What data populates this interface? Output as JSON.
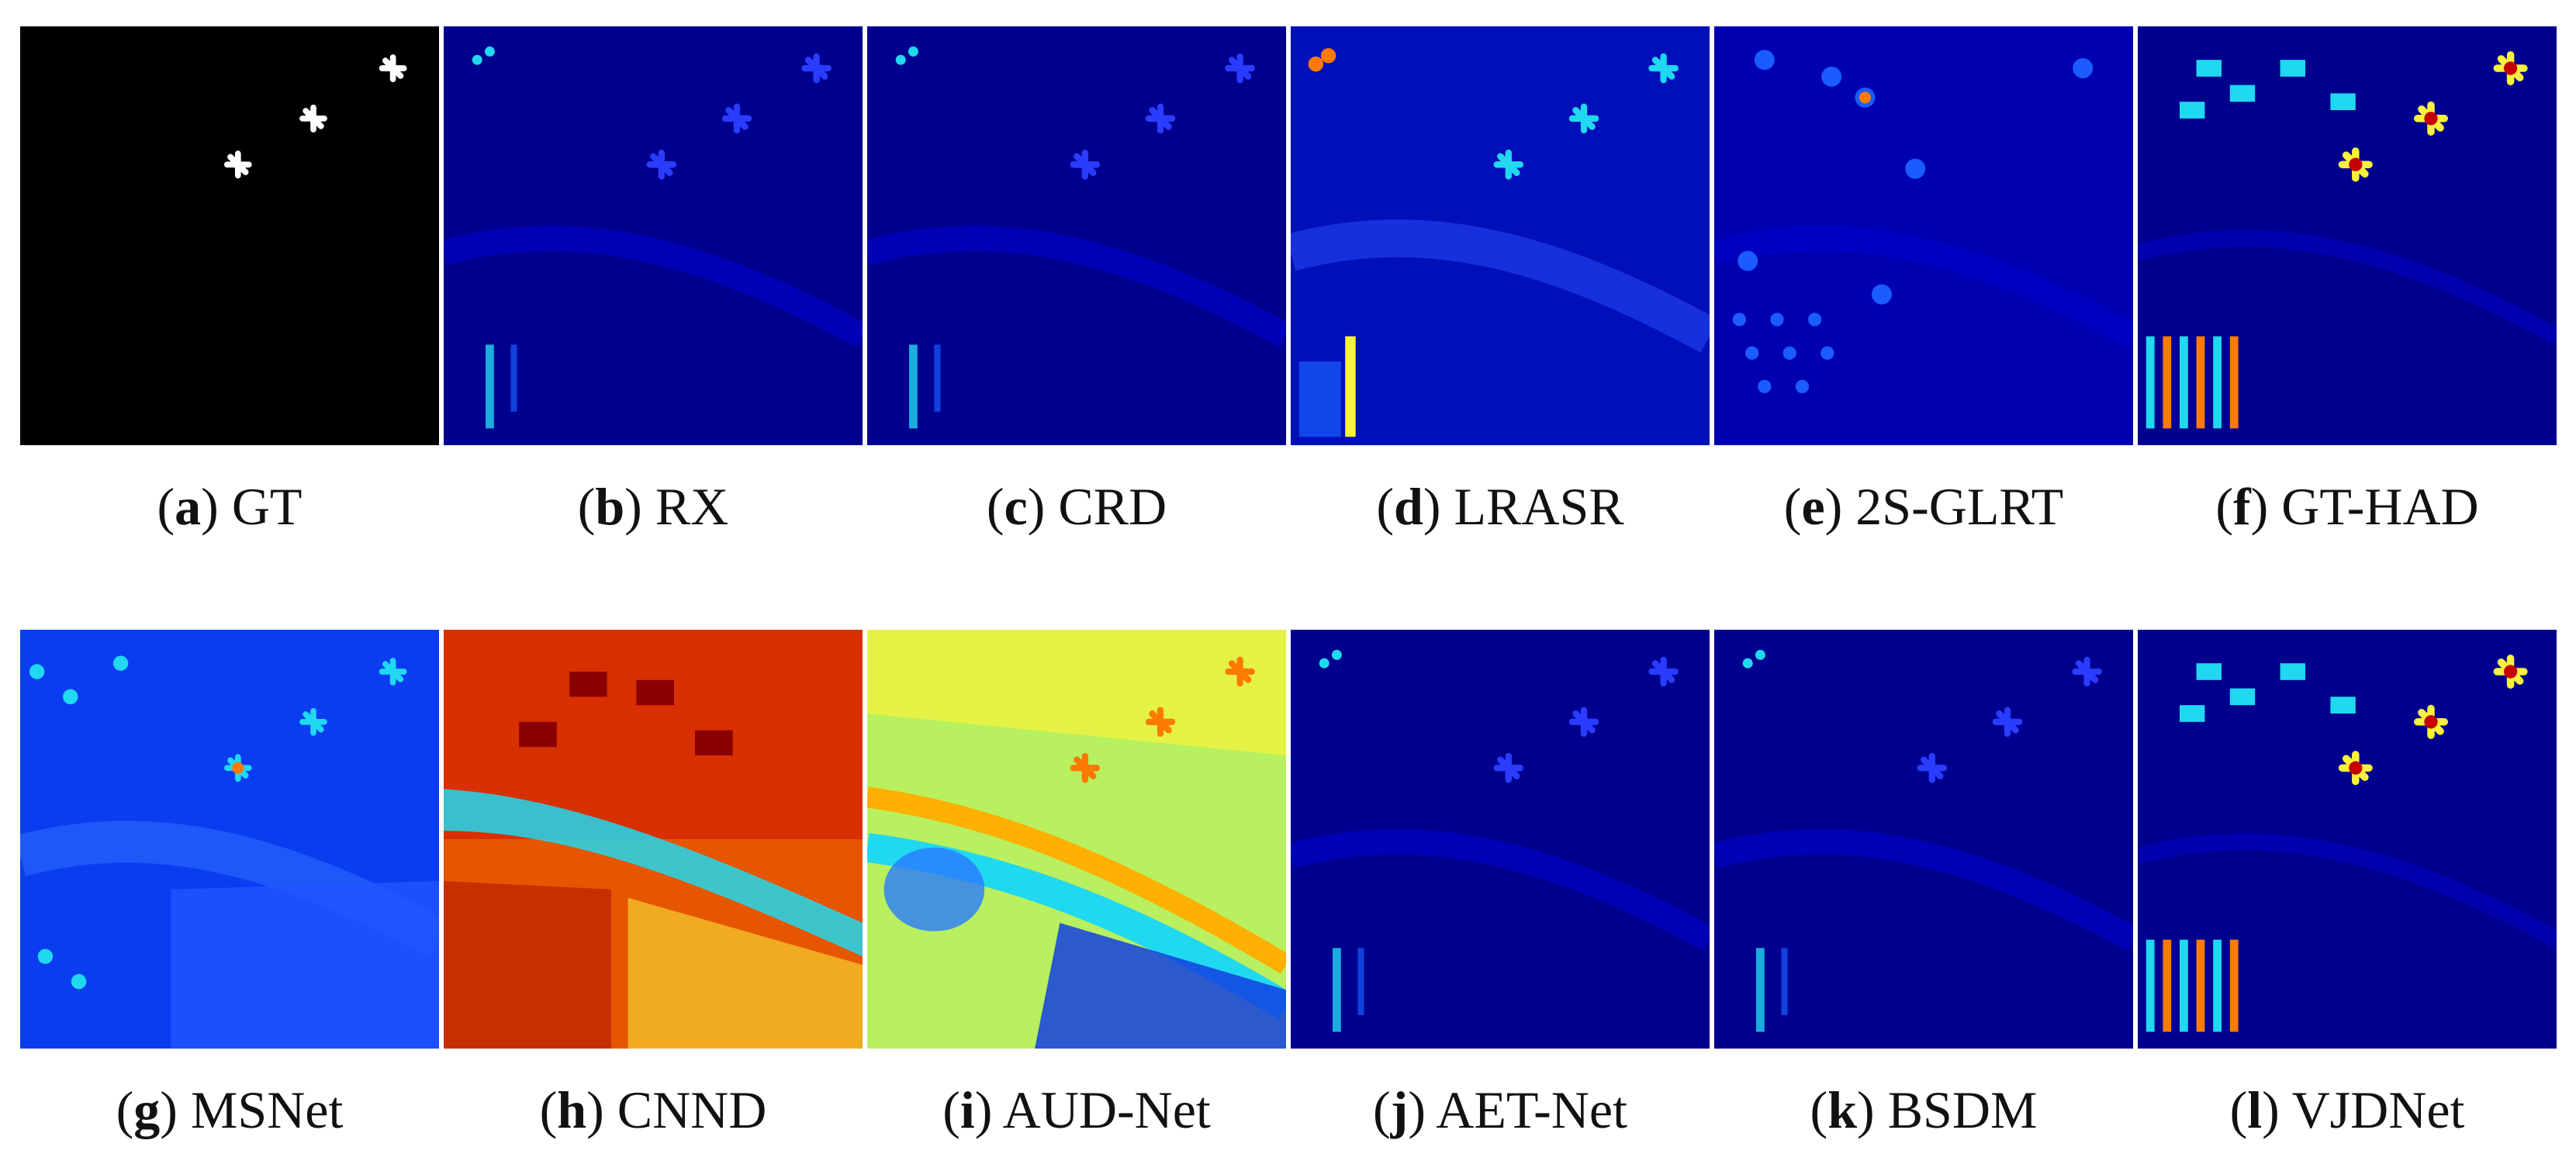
{
  "figure": {
    "panels": [
      {
        "letter": "a",
        "method": "GT",
        "style": "mask"
      },
      {
        "letter": "b",
        "method": "RX",
        "style": "low"
      },
      {
        "letter": "c",
        "method": "CRD",
        "style": "low"
      },
      {
        "letter": "d",
        "method": "LRASR",
        "style": "lowplus"
      },
      {
        "letter": "e",
        "method": "2S-GLRT",
        "style": "blobs"
      },
      {
        "letter": "f",
        "method": "GT-HAD",
        "style": "hot"
      },
      {
        "letter": "g",
        "method": "MSNet",
        "style": "blueflat"
      },
      {
        "letter": "h",
        "method": "CNND",
        "style": "red"
      },
      {
        "letter": "i",
        "method": "AUD-Net",
        "style": "cyanyellow"
      },
      {
        "letter": "j",
        "method": "AET-Net",
        "style": "low"
      },
      {
        "letter": "k",
        "method": "BSDM",
        "style": "low"
      },
      {
        "letter": "l",
        "method": "VJDNet",
        "style": "hot"
      }
    ],
    "colormap": {
      "dark_blue": "#00008f",
      "mid_blue": "#0000d0",
      "light_blue": "#1a5cff",
      "cyan": "#20d8f0",
      "yellow": "#f7f23a",
      "orange": "#ff7a00",
      "red": "#c40000",
      "black": "#000000",
      "white": "#ffffff"
    }
  }
}
